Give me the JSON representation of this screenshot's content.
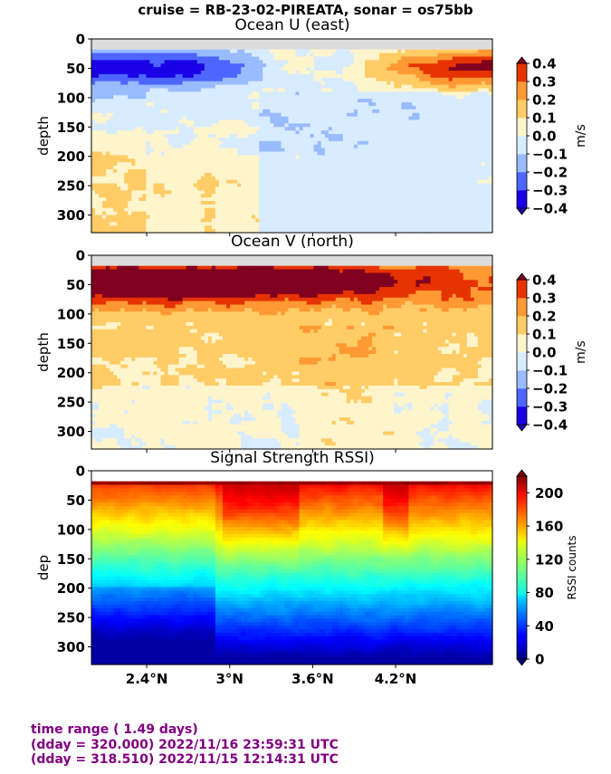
{
  "figure": {
    "suptitle": "cruise = RB-23-02-PIREATA,  sonar = os75bb",
    "footer_lines": [
      "time range ( 1.49 days)",
      "(dday = 320.000) 2022/11/16 23:59:31 UTC",
      "(dday = 318.510) 2022/11/15 12:14:31 UTC"
    ]
  },
  "chart_data": [
    {
      "type": "heatmap",
      "title": "Ocean U (east)",
      "ylabel": "depth",
      "ylim": [
        330,
        0
      ],
      "xlim": [
        2.0,
        4.9
      ],
      "yticks": [
        0,
        50,
        100,
        150,
        200,
        250,
        300
      ],
      "x_axis_tick_labels_visible": false,
      "colorbar": {
        "label": "m/s",
        "levels": [
          -0.4,
          -0.3,
          -0.2,
          -0.1,
          0.0,
          0.1,
          0.2,
          0.3,
          0.4
        ],
        "tick_labels": [
          "0.4",
          "0.3",
          "0.2",
          "0.1",
          "0.0",
          "−0.1",
          "−0.2",
          "−0.3",
          "−0.4"
        ],
        "colors": [
          "#1a00e6",
          "#4d66ff",
          "#99bbff",
          "#d8ecff",
          "#fff5cc",
          "#ffcc66",
          "#ff9933",
          "#e63300"
        ],
        "extend": "both",
        "under_color": "#2000b0",
        "over_color": "#800020"
      },
      "no_data_color": "#dcdcdc",
      "no_data_top_depth": 18
    },
    {
      "type": "heatmap",
      "title": "Ocean V (north)",
      "ylabel": "depth",
      "ylim": [
        330,
        0
      ],
      "xlim": [
        2.0,
        4.9
      ],
      "yticks": [
        0,
        50,
        100,
        150,
        200,
        250,
        300
      ],
      "x_axis_tick_labels_visible": false,
      "colorbar": {
        "label": "m/s",
        "levels": [
          -0.4,
          -0.3,
          -0.2,
          -0.1,
          0.0,
          0.1,
          0.2,
          0.3,
          0.4
        ],
        "tick_labels": [
          "0.4",
          "0.3",
          "0.2",
          "0.1",
          "0.0",
          "−0.1",
          "−0.2",
          "−0.3",
          "−0.4"
        ],
        "colors": [
          "#1a00e6",
          "#4d66ff",
          "#99bbff",
          "#d8ecff",
          "#fff5cc",
          "#ffcc66",
          "#ff9933",
          "#e63300"
        ],
        "extend": "both",
        "under_color": "#2000b0",
        "over_color": "#800020"
      },
      "no_data_color": "#dcdcdc",
      "no_data_top_depth": 18
    },
    {
      "type": "heatmap",
      "title": "Signal Strength RSSI)",
      "ylabel": "dep",
      "ylim": [
        330,
        0
      ],
      "xlim": [
        2.0,
        4.9
      ],
      "yticks": [
        0,
        50,
        100,
        150,
        200,
        250,
        300
      ],
      "xticks": [
        2.4,
        3.0,
        3.6,
        4.2
      ],
      "xtick_labels": [
        "2.4°N",
        "3°N",
        "3.6°N",
        "4.2°N"
      ],
      "colorbar": {
        "label": "RSSI counts",
        "range": [
          0,
          220
        ],
        "ticks": [
          0,
          40,
          80,
          120,
          160,
          200
        ],
        "tick_labels": [
          "200",
          "160",
          "120",
          "80",
          "40",
          "0"
        ],
        "colormap": "jet",
        "extend": "both"
      },
      "no_data_top_depth": 18
    }
  ]
}
